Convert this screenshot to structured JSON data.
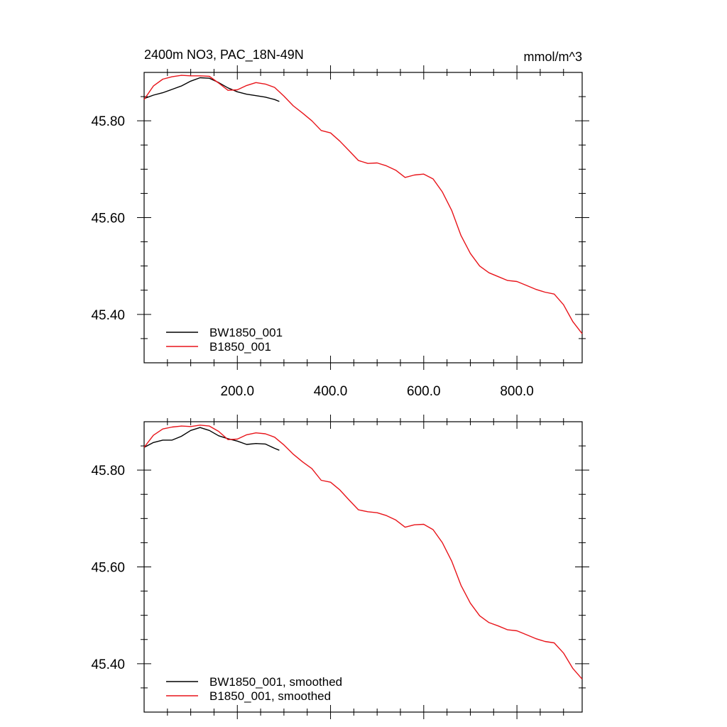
{
  "chart_data": [
    {
      "type": "line",
      "title": "2400m NO3, PAC_18N-49N",
      "units": "mmol/m^3",
      "xlim": [
        0,
        940
      ],
      "ylim": [
        45.3,
        45.9
      ],
      "xticks": [
        200,
        400,
        600,
        800
      ],
      "xtick_labels": [
        "200.0",
        "400.0",
        "600.0",
        "800.0"
      ],
      "yticks": [
        45.4,
        45.6,
        45.8
      ],
      "ytick_labels": [
        "45.40",
        "45.60",
        "45.80"
      ],
      "legend_position": "bottom-left",
      "grid": false,
      "series": [
        {
          "name": "BW1850_001",
          "color": "#000000",
          "x": [
            0,
            20,
            40,
            60,
            80,
            100,
            120,
            140,
            160,
            180,
            200,
            220,
            240,
            260,
            280,
            290
          ],
          "y": [
            45.846,
            45.853,
            45.858,
            45.865,
            45.872,
            45.882,
            45.889,
            45.888,
            45.879,
            45.868,
            45.86,
            45.855,
            45.852,
            45.849,
            45.844,
            45.84
          ]
        },
        {
          "name": "B1850_001",
          "color": "#e8141a",
          "x": [
            0,
            20,
            40,
            60,
            80,
            100,
            120,
            140,
            160,
            180,
            200,
            220,
            240,
            260,
            280,
            300,
            320,
            340,
            360,
            380,
            400,
            420,
            440,
            460,
            480,
            500,
            520,
            540,
            560,
            580,
            600,
            620,
            640,
            660,
            680,
            700,
            720,
            740,
            760,
            780,
            800,
            820,
            840,
            860,
            880,
            900,
            920,
            940
          ],
          "y": [
            45.844,
            45.872,
            45.886,
            45.891,
            45.894,
            45.893,
            45.893,
            45.892,
            45.878,
            45.863,
            45.864,
            45.873,
            45.879,
            45.876,
            45.869,
            45.851,
            45.831,
            45.816,
            45.8,
            45.78,
            45.775,
            45.758,
            45.738,
            45.718,
            45.712,
            45.713,
            45.707,
            45.698,
            45.683,
            45.688,
            45.69,
            45.68,
            45.653,
            45.615,
            45.563,
            45.526,
            45.5,
            45.486,
            45.478,
            45.47,
            45.468,
            45.46,
            45.452,
            45.446,
            45.442,
            45.42,
            45.385,
            45.36
          ]
        }
      ]
    },
    {
      "type": "line",
      "title": "",
      "xlim": [
        0,
        940
      ],
      "ylim": [
        45.3,
        45.9
      ],
      "xticks": [
        200,
        400,
        600,
        800
      ],
      "xtick_labels": [],
      "yticks": [
        45.4,
        45.6,
        45.8
      ],
      "ytick_labels": [
        "45.40",
        "45.60",
        "45.80"
      ],
      "legend_position": "bottom-left",
      "grid": false,
      "series": [
        {
          "name": "BW1850_001, smoothed",
          "color": "#000000",
          "x": [
            0,
            20,
            40,
            60,
            80,
            100,
            120,
            140,
            160,
            180,
            200,
            220,
            240,
            260,
            280,
            290
          ],
          "y": [
            45.847,
            45.857,
            45.862,
            45.862,
            45.87,
            45.882,
            45.888,
            45.882,
            45.871,
            45.865,
            45.86,
            45.853,
            45.855,
            45.854,
            45.845,
            45.841
          ]
        },
        {
          "name": "B1850_001, smoothed",
          "color": "#e8141a",
          "x": [
            0,
            20,
            40,
            60,
            80,
            100,
            120,
            140,
            160,
            180,
            200,
            220,
            240,
            260,
            280,
            300,
            320,
            340,
            360,
            380,
            400,
            420,
            440,
            460,
            480,
            500,
            520,
            540,
            560,
            580,
            600,
            620,
            640,
            660,
            680,
            700,
            720,
            740,
            760,
            780,
            800,
            820,
            840,
            860,
            880,
            900,
            920,
            940
          ],
          "y": [
            45.847,
            45.872,
            45.885,
            45.889,
            45.891,
            45.89,
            45.893,
            45.891,
            45.88,
            45.863,
            45.864,
            45.873,
            45.877,
            45.875,
            45.868,
            45.852,
            45.833,
            45.817,
            45.803,
            45.779,
            45.775,
            45.759,
            45.738,
            45.718,
            45.714,
            45.712,
            45.706,
            45.697,
            45.682,
            45.687,
            45.688,
            45.677,
            45.65,
            45.612,
            45.562,
            45.525,
            45.499,
            45.485,
            45.478,
            45.47,
            45.468,
            45.46,
            45.452,
            45.446,
            45.443,
            45.422,
            45.39,
            45.368
          ]
        }
      ]
    }
  ]
}
